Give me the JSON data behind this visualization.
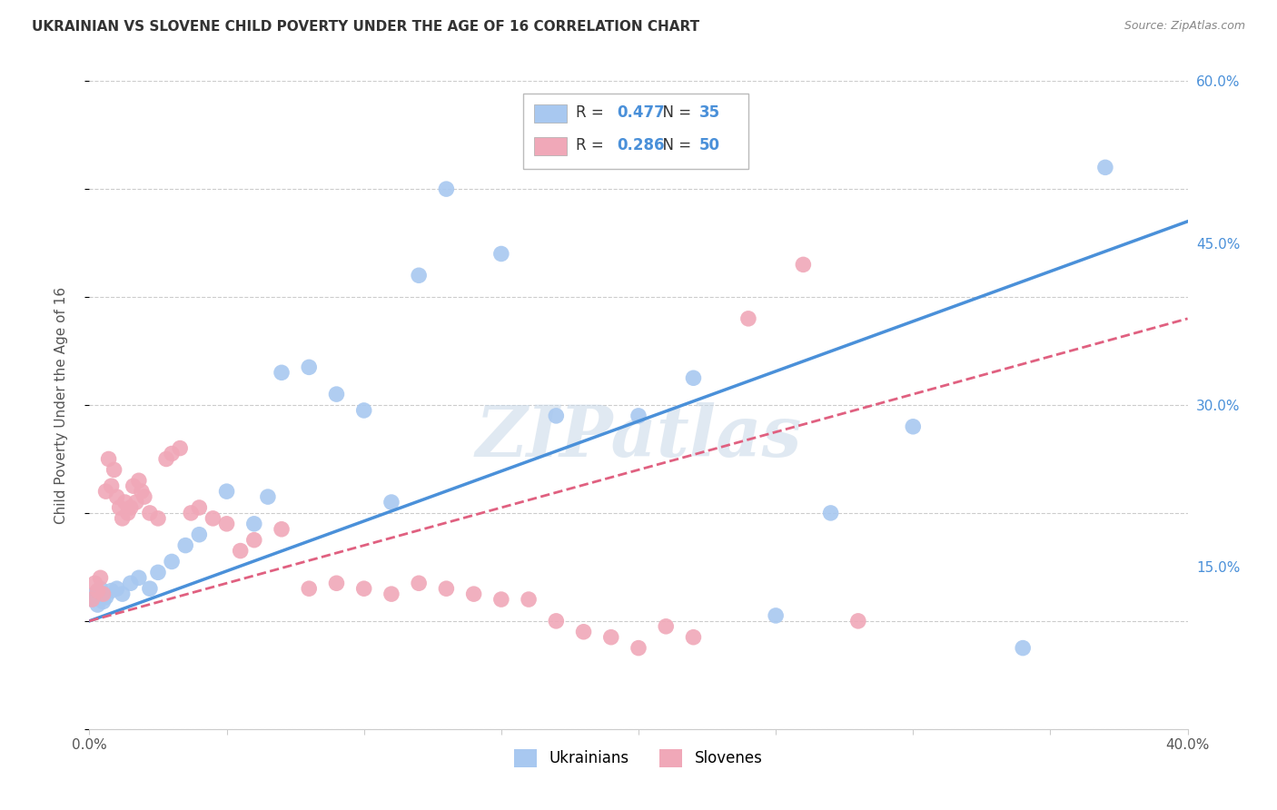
{
  "title": "UKRAINIAN VS SLOVENE CHILD POVERTY UNDER THE AGE OF 16 CORRELATION CHART",
  "source": "Source: ZipAtlas.com",
  "ylabel": "Child Poverty Under the Age of 16",
  "xmin": 0.0,
  "xmax": 0.4,
  "ymin": 0.0,
  "ymax": 0.6,
  "xticks": [
    0.0,
    0.05,
    0.1,
    0.15,
    0.2,
    0.25,
    0.3,
    0.35,
    0.4
  ],
  "yticks": [
    0.0,
    0.15,
    0.3,
    0.45,
    0.6
  ],
  "grid_color": "#cccccc",
  "background_color": "#ffffff",
  "watermark": "ZIPatlas",
  "ukrainian_color": "#a8c8f0",
  "slovene_color": "#f0a8b8",
  "ukrainian_line_color": "#4a90d9",
  "slovene_line_color": "#e06080",
  "R_ukrainian": 0.477,
  "N_ukrainian": 35,
  "R_slovene": 0.286,
  "N_slovene": 50,
  "ukrainian_x": [
    0.001,
    0.002,
    0.003,
    0.004,
    0.005,
    0.006,
    0.008,
    0.01,
    0.012,
    0.015,
    0.018,
    0.022,
    0.025,
    0.03,
    0.035,
    0.04,
    0.05,
    0.06,
    0.065,
    0.07,
    0.08,
    0.09,
    0.1,
    0.11,
    0.12,
    0.13,
    0.15,
    0.17,
    0.2,
    0.22,
    0.25,
    0.27,
    0.3,
    0.34,
    0.37
  ],
  "ukrainian_y": [
    0.12,
    0.125,
    0.115,
    0.13,
    0.118,
    0.122,
    0.128,
    0.13,
    0.125,
    0.135,
    0.14,
    0.13,
    0.145,
    0.155,
    0.17,
    0.18,
    0.22,
    0.19,
    0.215,
    0.33,
    0.335,
    0.31,
    0.295,
    0.21,
    0.42,
    0.5,
    0.44,
    0.29,
    0.29,
    0.325,
    0.105,
    0.2,
    0.28,
    0.075,
    0.52
  ],
  "slovene_x": [
    0.001,
    0.002,
    0.003,
    0.004,
    0.005,
    0.006,
    0.007,
    0.008,
    0.009,
    0.01,
    0.011,
    0.012,
    0.013,
    0.014,
    0.015,
    0.016,
    0.017,
    0.018,
    0.019,
    0.02,
    0.022,
    0.025,
    0.028,
    0.03,
    0.033,
    0.037,
    0.04,
    0.045,
    0.05,
    0.055,
    0.06,
    0.07,
    0.08,
    0.09,
    0.1,
    0.11,
    0.12,
    0.13,
    0.14,
    0.15,
    0.16,
    0.17,
    0.18,
    0.19,
    0.2,
    0.21,
    0.22,
    0.24,
    0.26,
    0.28
  ],
  "slovene_y": [
    0.12,
    0.135,
    0.128,
    0.14,
    0.125,
    0.22,
    0.25,
    0.225,
    0.24,
    0.215,
    0.205,
    0.195,
    0.21,
    0.2,
    0.205,
    0.225,
    0.21,
    0.23,
    0.22,
    0.215,
    0.2,
    0.195,
    0.25,
    0.255,
    0.26,
    0.2,
    0.205,
    0.195,
    0.19,
    0.165,
    0.175,
    0.185,
    0.13,
    0.135,
    0.13,
    0.125,
    0.135,
    0.13,
    0.125,
    0.12,
    0.12,
    0.1,
    0.09,
    0.085,
    0.075,
    0.095,
    0.085,
    0.38,
    0.43,
    0.1
  ]
}
